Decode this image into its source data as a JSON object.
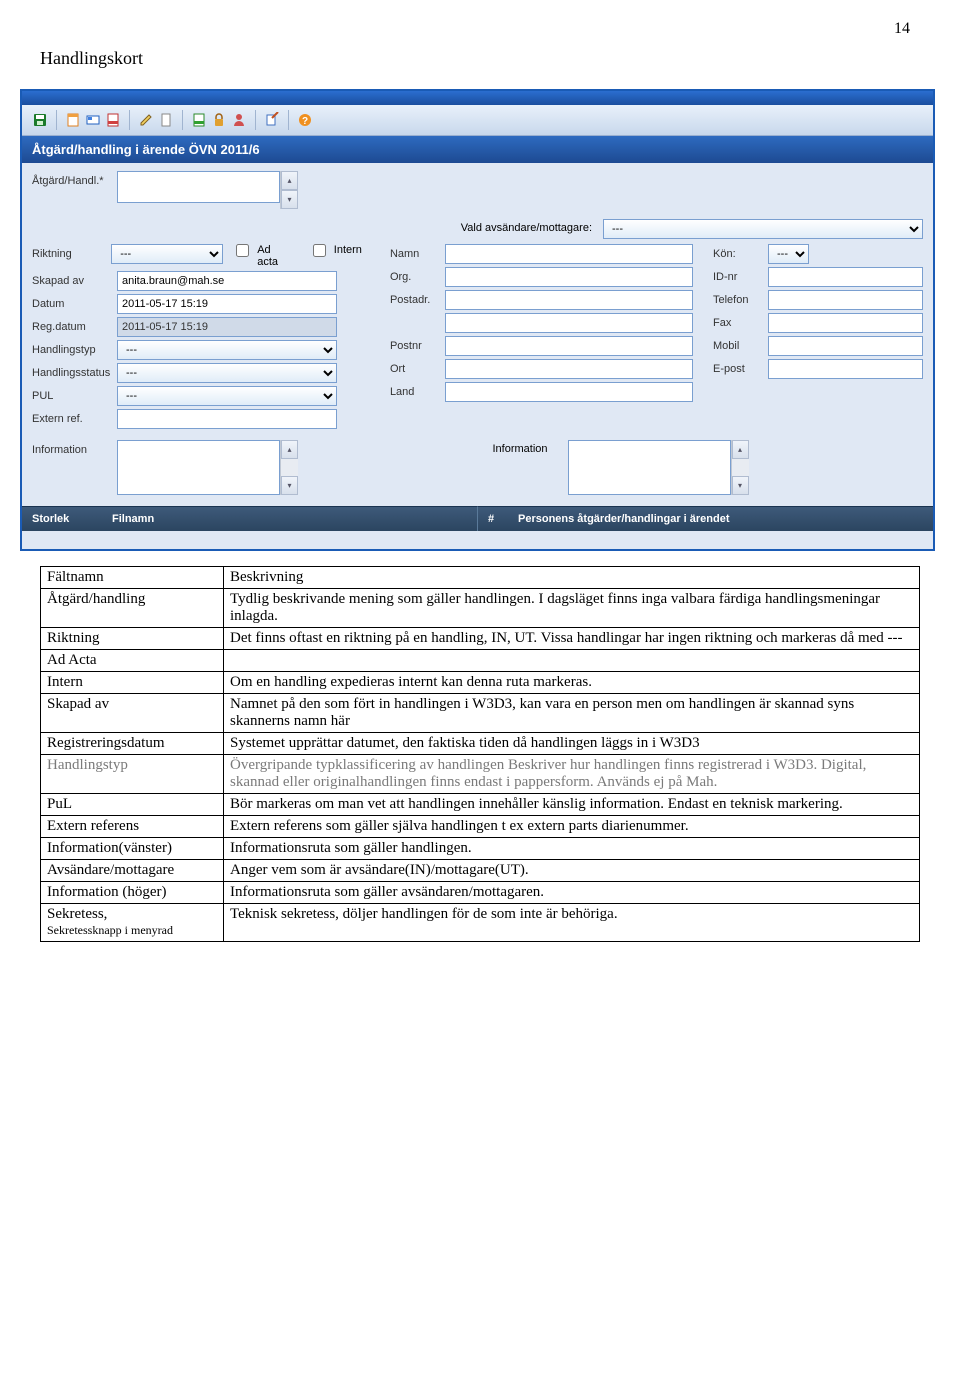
{
  "pageNumber": "14",
  "heading": "Handlingskort",
  "windowTitle": "Åtgärd/handling i ärende ÖVN 2011/6",
  "toolbar": {
    "icons": [
      "save",
      "sep",
      "doc-orange",
      "card",
      "doc-red",
      "edit",
      "doc-plain",
      "sep",
      "doc-green",
      "lock",
      "person",
      "sep",
      "edit2",
      "sep",
      "help"
    ]
  },
  "labels": {
    "atgard": "Åtgärd/Handl.*",
    "riktning": "Riktning",
    "adacta": "Ad acta",
    "intern": "Intern",
    "skapad": "Skapad av",
    "datum": "Datum",
    "regdatum": "Reg.datum",
    "handlingstyp": "Handlingstyp",
    "handlingsstatus": "Handlingsstatus",
    "pul": "PUL",
    "externref": "Extern ref.",
    "information": "Information",
    "vald": "Vald avsändare/mottagare:",
    "namn": "Namn",
    "org": "Org.",
    "postadr": "Postadr.",
    "postnr": "Postnr",
    "ort": "Ort",
    "land": "Land",
    "kon": "Kön:",
    "idnr": "ID-nr",
    "telefon": "Telefon",
    "fax": "Fax",
    "mobil": "Mobil",
    "epost": "E-post"
  },
  "values": {
    "riktning": "---",
    "skapad": "anita.braun@mah.se",
    "datum": "2011-05-17 15:19",
    "regdatum": "2011-05-17 15:19",
    "handlingstyp": "---",
    "handlingsstatus": "---",
    "pul": "---",
    "vald": "---",
    "kon": "---"
  },
  "darkHeaders": {
    "storlek": "Storlek",
    "filnamn": "Filnamn",
    "hash": "#",
    "personens": "Personens åtgärder/handlingar i ärendet"
  },
  "table": {
    "header": {
      "c1": "Fältnamn",
      "c2": "Beskrivning"
    },
    "rows": [
      {
        "c1": "Åtgärd/handling",
        "c2": "Tydlig beskrivande mening som gäller handlingen. I dagsläget finns inga valbara färdiga handlingsmeningar inlagda."
      },
      {
        "c1": "Riktning",
        "c2": "Det finns oftast en riktning på en handling, IN, UT. Vissa handlingar har ingen riktning och markeras då med ---"
      },
      {
        "c1": "Ad Acta",
        "c2": ""
      },
      {
        "c1": "Intern",
        "c2": "Om en handling expedieras internt kan denna ruta markeras."
      },
      {
        "c1": "Skapad av",
        "c2": "Namnet på den som fört in handlingen i W3D3, kan vara en person men om handlingen är skannad syns skannerns namn här"
      },
      {
        "c1": "Registreringsdatum",
        "c2": "Systemet upprättar datumet, den faktiska tiden då handlingen läggs in i W3D3"
      },
      {
        "c1": "Handlingstyp",
        "c2": "Övergripande typklassificering av handlingen\nBeskriver hur handlingen finns registrerad i W3D3. Digital, skannad eller originalhandlingen finns endast i pappersform. Används ej på Mah.",
        "grey": true
      },
      {
        "c1": "PuL",
        "c2": "Bör markeras om man vet att handlingen innehåller känslig information. Endast en teknisk markering."
      },
      {
        "c1": "Extern referens",
        "c2": "Extern referens som gäller själva handlingen t ex extern parts diarienummer."
      },
      {
        "c1": "Information(vänster)",
        "c2": "Informationsruta som gäller handlingen."
      },
      {
        "c1": "Avsändare/mottagare",
        "c2": "Anger vem som är avsändare(IN)/mottagare(UT)."
      },
      {
        "c1": "Information (höger)",
        "c2": "Informationsruta som gäller avsändaren/mottagaren."
      },
      {
        "c1": "Sekretess,",
        "c1b": "Sekretessknapp i menyrad",
        "c2": "Teknisk sekretess, döljer handlingen för de som inte är behöriga."
      }
    ]
  }
}
